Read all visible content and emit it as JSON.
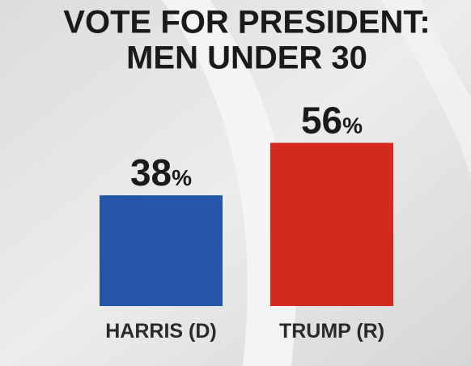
{
  "chart_data": {
    "type": "bar",
    "title": [
      "VOTE FOR PRESIDENT:",
      "MEN UNDER 30"
    ],
    "categories": [
      "HARRIS (D)",
      "TRUMP (R)"
    ],
    "values": [
      38,
      56
    ],
    "value_labels": [
      "38%",
      "56%"
    ],
    "colors": [
      "#2356a6",
      "#d22a1f"
    ]
  }
}
